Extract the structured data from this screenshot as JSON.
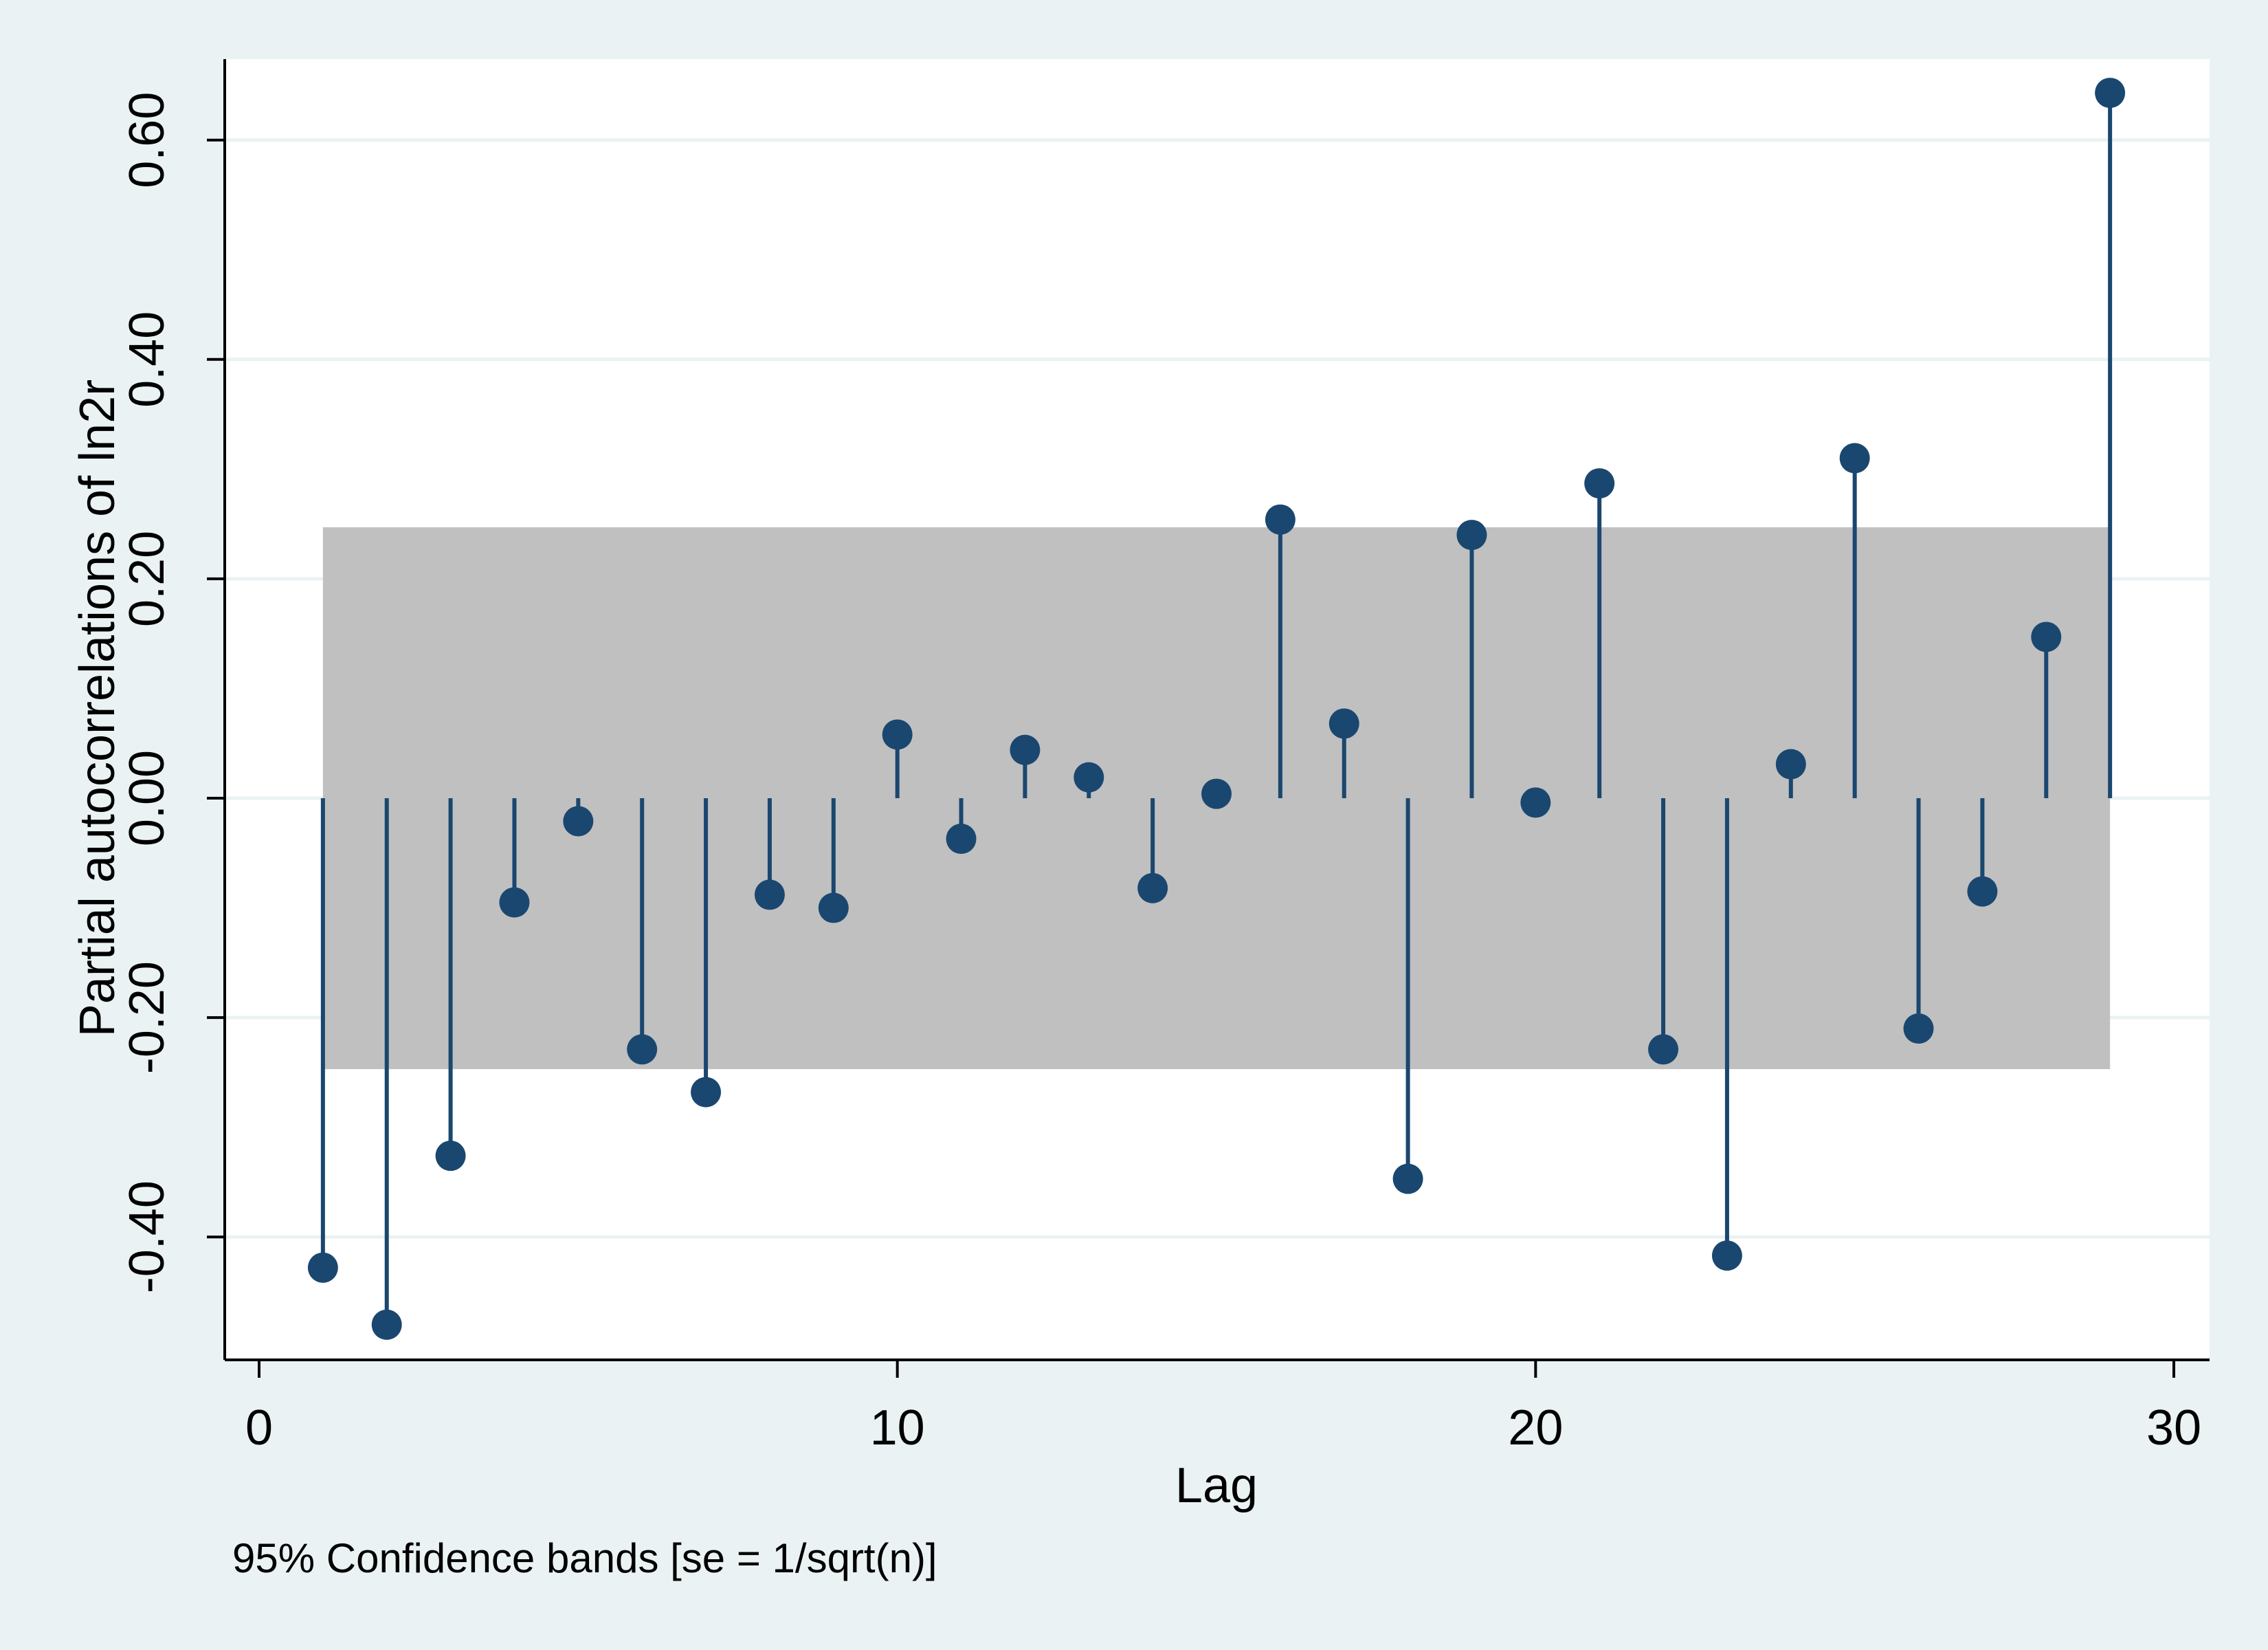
{
  "colors": {
    "outer_bg": "#eaf2f3",
    "plot_bg": "#ffffff",
    "grid": "#eaf2f3",
    "band": "#c0c0c0",
    "marker": "#1a476f",
    "axis": "#000000"
  },
  "chart_data": {
    "type": "scatter",
    "style": "spike",
    "xlabel": "Lag",
    "ylabel": "Partial autocorrelations of ln2r",
    "note": "95% Confidence bands [se = 1/sqrt(n)]",
    "xlim": [
      0,
      30
    ],
    "ylim": [
      -0.5,
      0.7
    ],
    "xticks": [
      0,
      10,
      20,
      30
    ],
    "xtick_labels": [
      "0",
      "10",
      "20",
      "30"
    ],
    "yticks": [
      -0.4,
      -0.2,
      0.0,
      0.2,
      0.4,
      0.6
    ],
    "ytick_labels": [
      "-0.40",
      "-0.20",
      "0.00",
      "0.20",
      "0.40",
      "0.60"
    ],
    "grid": true,
    "confidence_band": {
      "from_lag": 1,
      "to_lag": 29,
      "lower": -0.247,
      "upper": 0.247
    },
    "x": [
      1,
      2,
      3,
      4,
      5,
      6,
      7,
      8,
      9,
      10,
      11,
      12,
      13,
      14,
      15,
      16,
      17,
      18,
      19,
      20,
      21,
      22,
      23,
      24,
      25,
      26,
      27,
      28,
      29
    ],
    "y": [
      -0.428,
      -0.48,
      -0.326,
      -0.095,
      -0.021,
      -0.229,
      -0.268,
      -0.088,
      -0.1,
      0.058,
      -0.037,
      0.044,
      0.019,
      -0.082,
      0.004,
      0.254,
      0.068,
      -0.347,
      0.24,
      -0.004,
      0.287,
      -0.229,
      -0.417,
      0.031,
      0.31,
      -0.21,
      -0.085,
      0.147,
      0.643
    ]
  }
}
